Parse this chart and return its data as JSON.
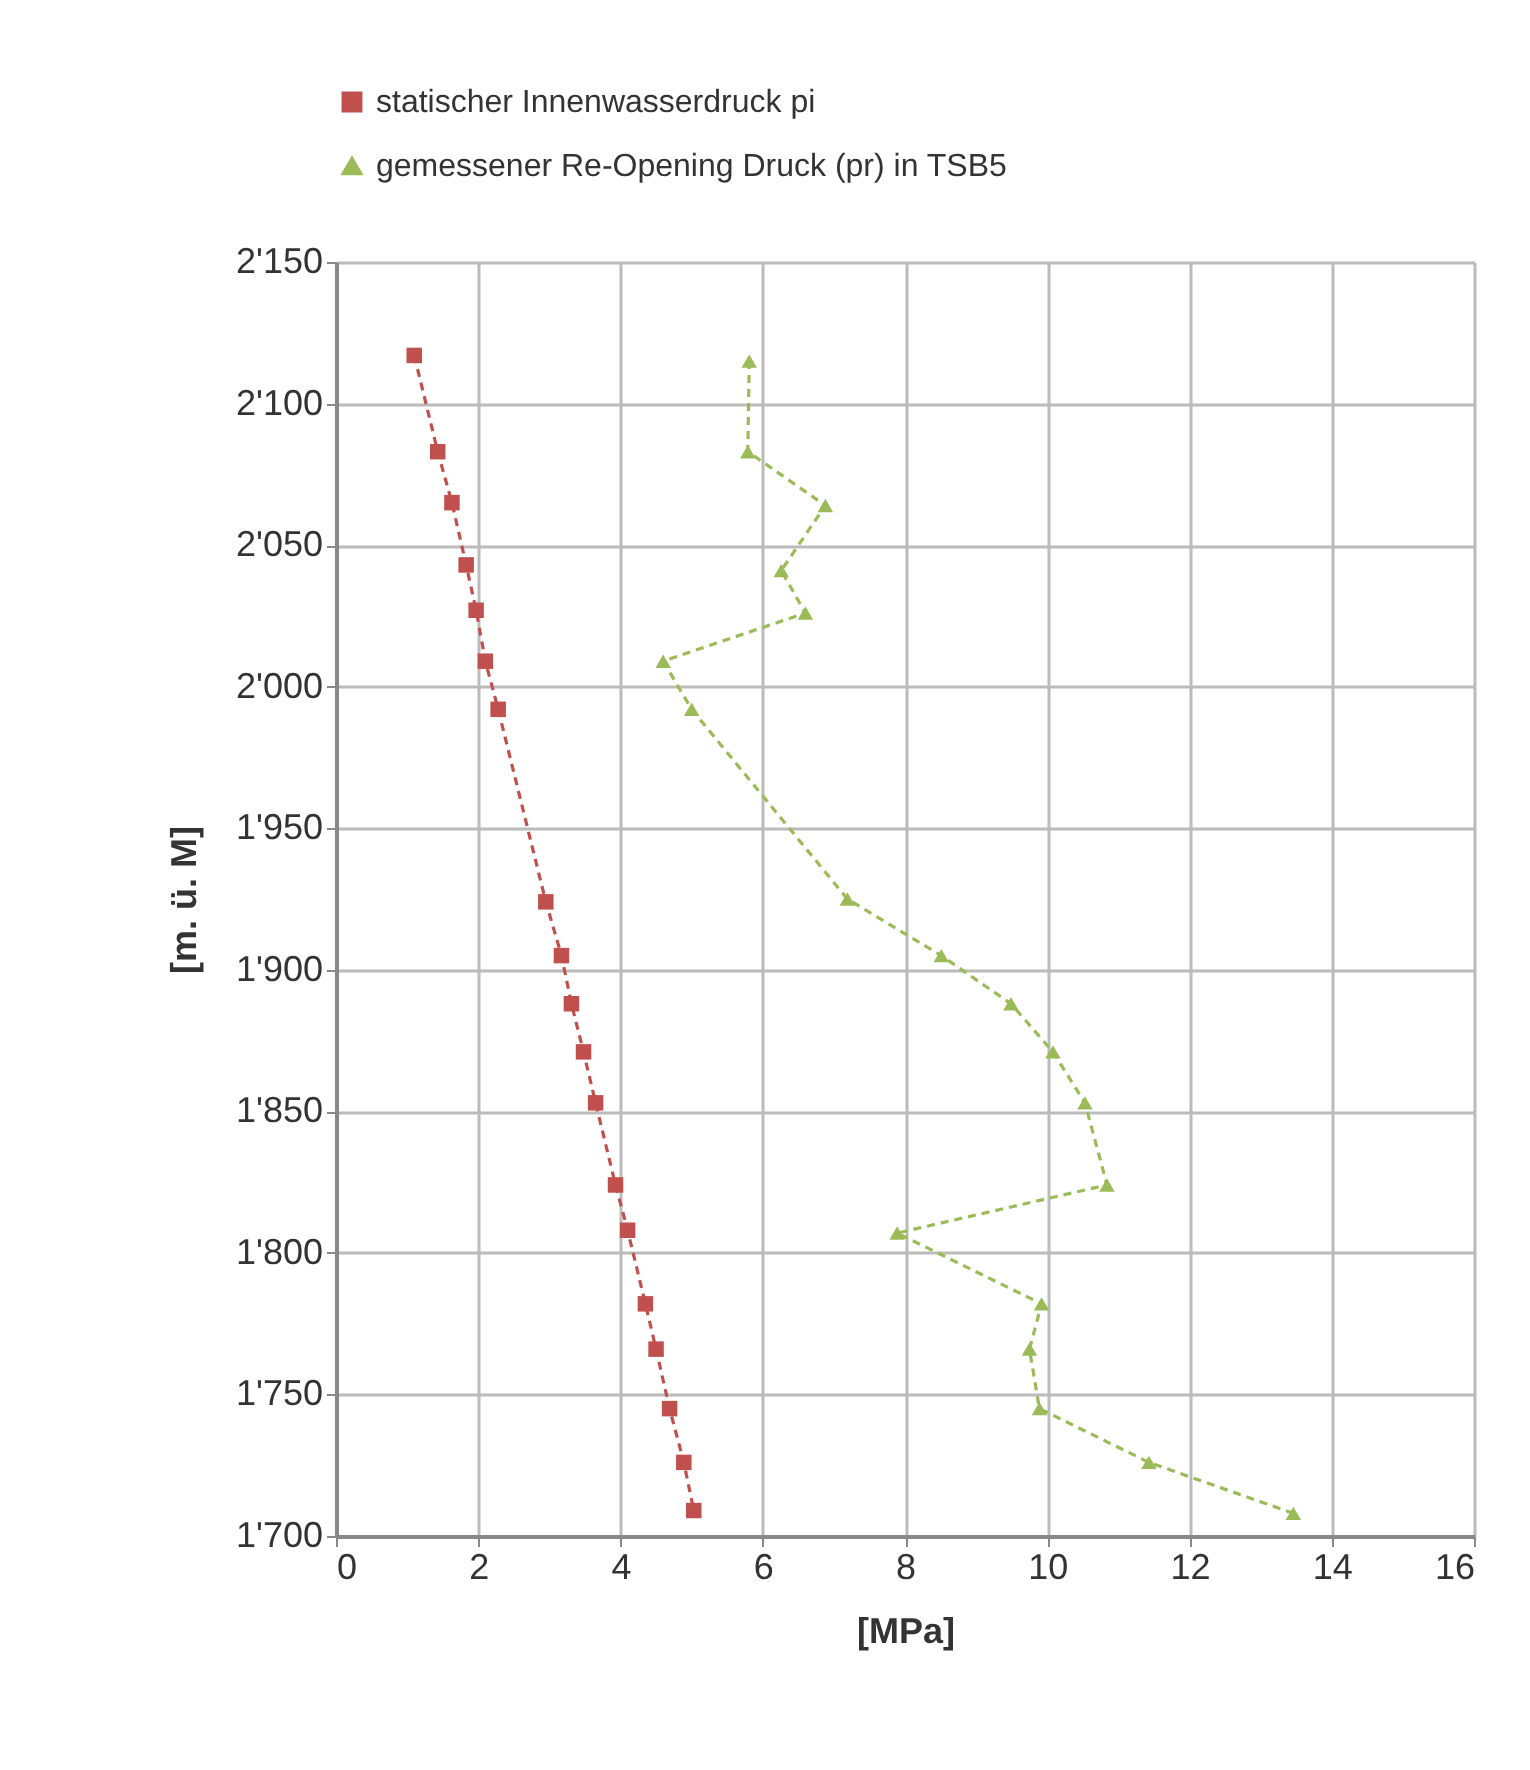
{
  "chart_data": {
    "type": "line",
    "xlabel": "[MPa]",
    "ylabel": "[m. ü. M]",
    "xlim": [
      0,
      16
    ],
    "xticks": [
      0,
      2,
      4,
      6,
      8,
      10,
      12,
      14,
      16
    ],
    "ylim": [
      1700,
      2150
    ],
    "yticks": [
      {
        "value": 1700,
        "label": "1'700"
      },
      {
        "value": 1750,
        "label": "1'750"
      },
      {
        "value": 1800,
        "label": "1'800"
      },
      {
        "value": 1850,
        "label": "1'850"
      },
      {
        "value": 1900,
        "label": "1'900"
      },
      {
        "value": 1950,
        "label": "1'950"
      },
      {
        "value": 2000,
        "label": "2'000"
      },
      {
        "value": 2050,
        "label": "2'050"
      },
      {
        "value": 2100,
        "label": "2'100"
      },
      {
        "value": 2150,
        "label": "2'150"
      }
    ],
    "grid": true,
    "legend": "top",
    "line_style": "dashed",
    "series": [
      {
        "name": "statischer Innenwasserdruck pi",
        "color": "#c0504d",
        "marker": "square",
        "x": [
          1.1,
          1.43,
          1.63,
          1.83,
          1.97,
          2.1,
          2.28,
          2.95,
          3.17,
          3.31,
          3.48,
          3.65,
          3.93,
          4.1,
          4.35,
          4.5,
          4.69,
          4.89,
          5.03
        ],
        "values": [
          2117,
          2083,
          2065,
          2043,
          2027,
          2009,
          1992,
          1924,
          1905,
          1888,
          1871,
          1853,
          1824,
          1808,
          1782,
          1766,
          1745,
          1726,
          1709
        ]
      },
      {
        "name": "gemessener Re-Opening Druck (pr) in TSB5",
        "color": "#9bbb59",
        "marker": "triangle",
        "x": [
          5.81,
          5.79,
          6.88,
          6.26,
          6.6,
          4.6,
          5.0,
          7.19,
          8.51,
          9.49,
          10.08,
          10.53,
          10.84,
          7.89,
          9.92,
          9.75,
          9.89,
          11.43,
          13.46
        ],
        "values": [
          2115,
          2083,
          2064,
          2041,
          2026,
          2009,
          1992,
          1925,
          1905,
          1888,
          1871,
          1853,
          1824,
          1807,
          1782,
          1766,
          1745,
          1726,
          1708
        ]
      }
    ]
  }
}
